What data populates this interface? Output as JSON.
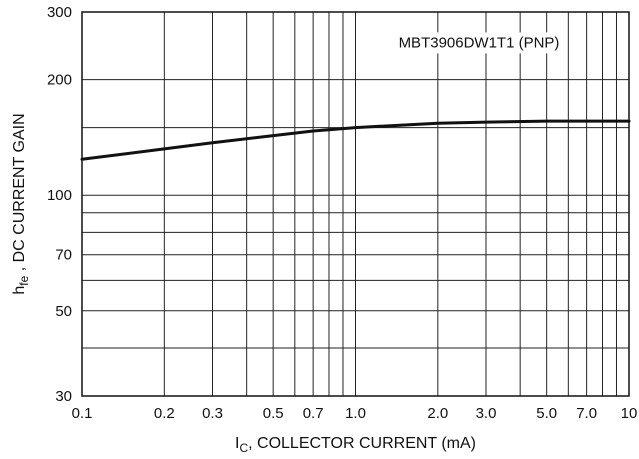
{
  "chart_data": {
    "type": "line",
    "title": "",
    "xlabel": {
      "main": "I",
      "sub": "C",
      "rest": ", COLLECTOR CURRENT (mA)"
    },
    "ylabel": {
      "main": "h",
      "sub": "fe",
      "rest": " , DC CURRENT GAIN"
    },
    "x_scale": "log",
    "y_scale": "log",
    "xlim": [
      0.1,
      10
    ],
    "ylim": [
      30,
      300
    ],
    "x_tick_labels": [
      {
        "v": 0.1,
        "t": "0.1"
      },
      {
        "v": 0.2,
        "t": "0.2"
      },
      {
        "v": 0.3,
        "t": "0.3"
      },
      {
        "v": 0.5,
        "t": "0.5"
      },
      {
        "v": 0.7,
        "t": "0.7"
      },
      {
        "v": 1.0,
        "t": "1.0"
      },
      {
        "v": 2.0,
        "t": "2.0"
      },
      {
        "v": 3.0,
        "t": "3.0"
      },
      {
        "v": 5.0,
        "t": "5.0"
      },
      {
        "v": 7.0,
        "t": "7.0"
      },
      {
        "v": 10,
        "t": "10"
      }
    ],
    "y_tick_labels": [
      {
        "v": 30,
        "t": "30"
      },
      {
        "v": 50,
        "t": "50"
      },
      {
        "v": 70,
        "t": "70"
      },
      {
        "v": 100,
        "t": "100"
      },
      {
        "v": 200,
        "t": "200"
      },
      {
        "v": 300,
        "t": "300"
      }
    ],
    "x_grid": [
      0.1,
      0.2,
      0.3,
      0.4,
      0.5,
      0.6,
      0.7,
      0.8,
      0.9,
      1,
      2,
      3,
      4,
      5,
      6,
      7,
      8,
      9,
      10
    ],
    "y_grid": [
      30,
      40,
      50,
      60,
      70,
      80,
      90,
      100,
      150,
      200,
      300
    ],
    "grid": true,
    "annotation": "MBT3906DW1T1 (PNP)",
    "series": [
      {
        "color": "#111111",
        "x": [
          0.1,
          0.2,
          0.3,
          0.5,
          0.7,
          1.0,
          2.0,
          3.0,
          5.0,
          7.0,
          10
        ],
        "y": [
          124,
          132,
          137,
          143,
          147,
          150,
          154,
          155,
          156,
          156,
          156
        ]
      }
    ]
  }
}
